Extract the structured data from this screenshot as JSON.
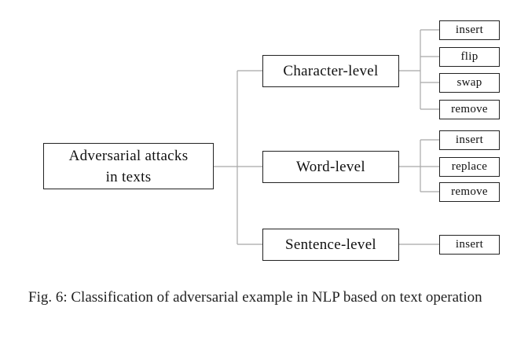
{
  "diagram": {
    "root": {
      "line1": "Adversarial attacks",
      "line2": "in texts"
    },
    "levels": [
      {
        "label": "Character-level",
        "children": [
          "insert",
          "flip",
          "swap",
          "remove"
        ]
      },
      {
        "label": "Word-level",
        "children": [
          "insert",
          "replace",
          "remove"
        ]
      },
      {
        "label": "Sentence-level",
        "children": [
          "insert"
        ]
      }
    ]
  },
  "caption": "Fig. 6: Classification of adversarial example in NLP based on text operation"
}
